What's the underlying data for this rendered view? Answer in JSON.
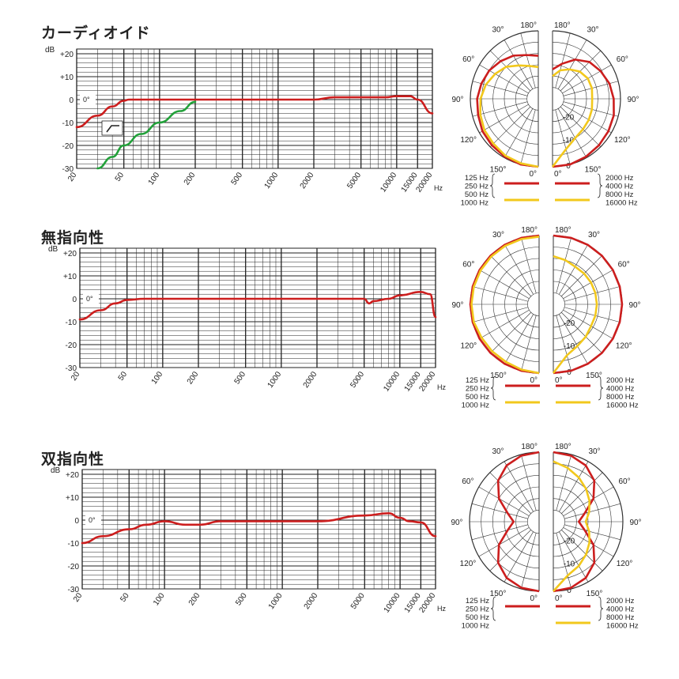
{
  "panels": [
    {
      "title": "カーディオイド",
      "freq_db_label": "dB",
      "y_ticks": [
        "+20",
        "+10",
        "0",
        "-10",
        "-20",
        "-30"
      ],
      "x_ticks": [
        "20",
        "50",
        "100",
        "200",
        "500",
        "1000",
        "2000",
        "5000",
        "10000",
        "15000",
        "20000"
      ],
      "x_unit": "Hz",
      "angle_marker": "0°",
      "polar_angles_left": [
        "180°",
        "150°",
        "120°",
        "90°",
        "60°",
        "30°",
        "0°"
      ],
      "polar_angles_right": [
        "180°",
        "150°",
        "120°",
        "90°",
        "60°",
        "30°",
        "0°"
      ],
      "polar_rings": [
        "-20",
        "-10",
        "0"
      ],
      "legend_left": [
        "125 Hz",
        "250 Hz",
        "500 Hz",
        "1000 Hz"
      ],
      "legend_right": [
        "2000 Hz",
        "4000 Hz",
        "8000 Hz",
        "16000 Hz"
      ]
    },
    {
      "title": "無指向性",
      "freq_db_label": "dB",
      "y_ticks": [
        "+20",
        "+10",
        "0",
        "-10",
        "-20",
        "-30"
      ],
      "x_ticks": [
        "20",
        "50",
        "100",
        "200",
        "500",
        "1000",
        "2000",
        "5000",
        "10000",
        "15000",
        "20000"
      ],
      "x_unit": "Hz",
      "angle_marker": "0°",
      "polar_angles_left": [
        "180°",
        "150°",
        "120°",
        "90°",
        "60°",
        "30°",
        "0°"
      ],
      "polar_angles_right": [
        "180°",
        "150°",
        "120°",
        "90°",
        "60°",
        "30°",
        "0°"
      ],
      "polar_rings": [
        "-20",
        "-10",
        "0"
      ],
      "legend_left": [
        "125 Hz",
        "250 Hz",
        "500 Hz",
        "1000 Hz"
      ],
      "legend_right": [
        "2000 Hz",
        "4000 Hz",
        "8000 Hz",
        "16000 Hz"
      ]
    },
    {
      "title": "双指向性",
      "freq_db_label": "dB",
      "y_ticks": [
        "+20",
        "+10",
        "0",
        "-10",
        "-20",
        "-30"
      ],
      "x_ticks": [
        "20",
        "50",
        "100",
        "200",
        "500",
        "1000",
        "2000",
        "5000",
        "10000",
        "15000",
        "20000"
      ],
      "x_unit": "Hz",
      "angle_marker": "0°",
      "polar_angles_left": [
        "180°",
        "150°",
        "120°",
        "90°",
        "60°",
        "30°",
        "0°"
      ],
      "polar_angles_right": [
        "180°",
        "150°",
        "120°",
        "90°",
        "60°",
        "30°",
        "0°"
      ],
      "polar_rings": [
        "-20",
        "-10",
        "0"
      ],
      "legend_left": [
        "125 Hz",
        "250 Hz",
        "500 Hz",
        "1000 Hz"
      ],
      "legend_right": [
        "2000 Hz",
        "4000 Hz",
        "8000 Hz",
        "16000 Hz"
      ]
    }
  ],
  "colors": {
    "red": "#cc1e1e",
    "yellow": "#f2c81c",
    "green": "#22a13a",
    "grid": "#222222"
  },
  "chart_data": [
    {
      "type": "line",
      "title": "カーディオイド",
      "xlabel": "Hz",
      "ylabel": "dB",
      "xscale": "log",
      "xlim": [
        20,
        20000
      ],
      "ylim": [
        -30,
        20
      ],
      "series": [
        {
          "color": "red",
          "x": [
            20,
            30,
            40,
            50,
            55,
            70,
            100,
            200,
            500,
            1000,
            2000,
            3000,
            5000,
            8000,
            10000,
            13000,
            15000,
            20000
          ],
          "y": [
            -12,
            -7,
            -3,
            -0.5,
            0,
            0,
            0,
            0,
            0,
            0,
            0,
            1,
            1,
            1,
            1.5,
            1.5,
            0,
            -6
          ]
        },
        {
          "color": "green",
          "x": [
            30,
            40,
            50,
            70,
            100,
            150,
            200
          ],
          "y": [
            -30,
            -25,
            -20,
            -15,
            -10,
            -5,
            -1
          ]
        }
      ],
      "inset_y": [
        -10,
        -13
      ]
    },
    {
      "type": "line",
      "title": "無指向性",
      "xlabel": "Hz",
      "ylabel": "dB",
      "xscale": "log",
      "xlim": [
        20,
        20000
      ],
      "ylim": [
        -30,
        20
      ],
      "series": [
        {
          "color": "red",
          "x": [
            20,
            30,
            40,
            50,
            70,
            100,
            200,
            500,
            1000,
            2000,
            5000,
            5500,
            6000,
            8000,
            10000,
            15000,
            18000,
            20000
          ],
          "y": [
            -9,
            -5,
            -2,
            -0.5,
            0,
            0,
            0,
            0,
            0,
            0,
            0,
            -2,
            -1,
            0,
            1.5,
            3,
            2,
            -8
          ]
        }
      ]
    },
    {
      "type": "line",
      "title": "双指向性",
      "xlabel": "Hz",
      "ylabel": "dB",
      "xscale": "log",
      "xlim": [
        20,
        20000
      ],
      "ylim": [
        -30,
        20
      ],
      "series": [
        {
          "color": "red",
          "x": [
            20,
            30,
            50,
            70,
            100,
            150,
            200,
            300,
            500,
            1000,
            2000,
            5000,
            8000,
            10000,
            12000,
            15000,
            20000
          ],
          "y": [
            -10,
            -7,
            -4,
            -2,
            -0.5,
            -2,
            -2,
            -0.5,
            -0.5,
            -0.5,
            -0.5,
            2,
            3,
            1,
            -0.5,
            -1,
            -7
          ]
        }
      ]
    },
    {
      "type": "polar",
      "title": "カーディオイド",
      "left_label": "125 / 250 / 500 / 1000 Hz",
      "right_label": "2000 / 4000 / 8000 / 16000 Hz",
      "rlim": [
        -30,
        0
      ],
      "series": [
        {
          "side": "left",
          "color": "red",
          "angles": [
            0,
            15,
            30,
            45,
            60,
            75,
            90,
            105,
            120,
            135,
            150,
            165,
            180
          ],
          "db": [
            0,
            0,
            -0.5,
            -1,
            -1.5,
            -2.5,
            -3,
            -4,
            -5,
            -6.5,
            -8,
            -10,
            -11
          ]
        },
        {
          "side": "left",
          "color": "yellow",
          "angles": [
            0,
            15,
            30,
            45,
            60,
            75,
            90,
            105,
            120,
            135,
            150,
            165,
            180
          ],
          "db": [
            0,
            -0.5,
            -1,
            -2,
            -2.5,
            -3.5,
            -4.5,
            -6,
            -8,
            -10,
            -13,
            -15,
            -16
          ]
        },
        {
          "side": "right",
          "color": "red",
          "angles": [
            0,
            15,
            30,
            45,
            60,
            75,
            90,
            105,
            120,
            135,
            150,
            165,
            180
          ],
          "db": [
            0,
            0,
            -0.5,
            -1,
            -1.5,
            -2,
            -3,
            -4,
            -5.5,
            -7,
            -10,
            -14,
            -17
          ]
        },
        {
          "side": "right",
          "color": "yellow",
          "angles": [
            0,
            15,
            30,
            45,
            60,
            75,
            90,
            105,
            120,
            135,
            150,
            165,
            180
          ],
          "db": [
            0,
            -7,
            -10,
            -11,
            -11.5,
            -12,
            -12.5,
            -12,
            -12,
            -13,
            -15,
            -17,
            -20
          ]
        }
      ]
    },
    {
      "type": "polar",
      "title": "無指向性",
      "rlim": [
        -30,
        0
      ],
      "series": [
        {
          "side": "left",
          "color": "red",
          "angles": [
            0,
            15,
            30,
            45,
            60,
            75,
            90,
            105,
            120,
            135,
            150,
            165,
            180
          ],
          "db": [
            0,
            0,
            0,
            0,
            0,
            0,
            0,
            0,
            0,
            0,
            0,
            0,
            0
          ]
        },
        {
          "side": "left",
          "color": "yellow",
          "angles": [
            0,
            15,
            30,
            45,
            60,
            75,
            90,
            105,
            120,
            135,
            150,
            165,
            180
          ],
          "db": [
            0,
            -0.5,
            -1,
            -1,
            -1,
            -0.5,
            -0.5,
            -0.5,
            -0.5,
            -0.5,
            -0.5,
            -0.5,
            -0.5
          ]
        },
        {
          "side": "right",
          "color": "red",
          "angles": [
            0,
            15,
            30,
            45,
            60,
            75,
            90,
            105,
            120,
            135,
            150,
            165,
            180
          ],
          "db": [
            0,
            0,
            0,
            0,
            0,
            0,
            0,
            0,
            0,
            0,
            0,
            0,
            0
          ]
        },
        {
          "side": "right",
          "color": "yellow",
          "angles": [
            0,
            15,
            30,
            45,
            60,
            75,
            90,
            105,
            120,
            135,
            150,
            165,
            180
          ],
          "db": [
            0,
            -7,
            -9,
            -10,
            -11,
            -11,
            -11,
            -11,
            -11,
            -11,
            -11,
            -10,
            -9
          ]
        }
      ]
    },
    {
      "type": "polar",
      "title": "双指向性",
      "rlim": [
        -30,
        0
      ],
      "series": [
        {
          "side": "left",
          "color": "red",
          "angles": [
            0,
            15,
            30,
            45,
            60,
            75,
            90,
            105,
            120,
            135,
            150,
            165,
            180
          ],
          "db": [
            0,
            -0.5,
            -2,
            -5,
            -10,
            -16,
            -19,
            -16,
            -10,
            -5,
            -2,
            -0.5,
            0
          ]
        },
        {
          "side": "right",
          "color": "red",
          "angles": [
            0,
            15,
            30,
            45,
            60,
            75,
            90,
            105,
            120,
            135,
            150,
            165,
            180
          ],
          "db": [
            0,
            -0.5,
            -2,
            -5,
            -10,
            -16,
            -19,
            -16,
            -10,
            -5,
            -2,
            -0.5,
            0
          ]
        },
        {
          "side": "right",
          "color": "yellow",
          "angles": [
            0,
            15,
            30,
            45,
            60,
            75,
            90,
            105,
            120,
            135,
            150,
            165,
            180
          ],
          "db": [
            0,
            -6,
            -8,
            -10,
            -12,
            -14,
            -16,
            -14,
            -12,
            -10,
            -8,
            -6,
            -4
          ]
        }
      ]
    }
  ]
}
